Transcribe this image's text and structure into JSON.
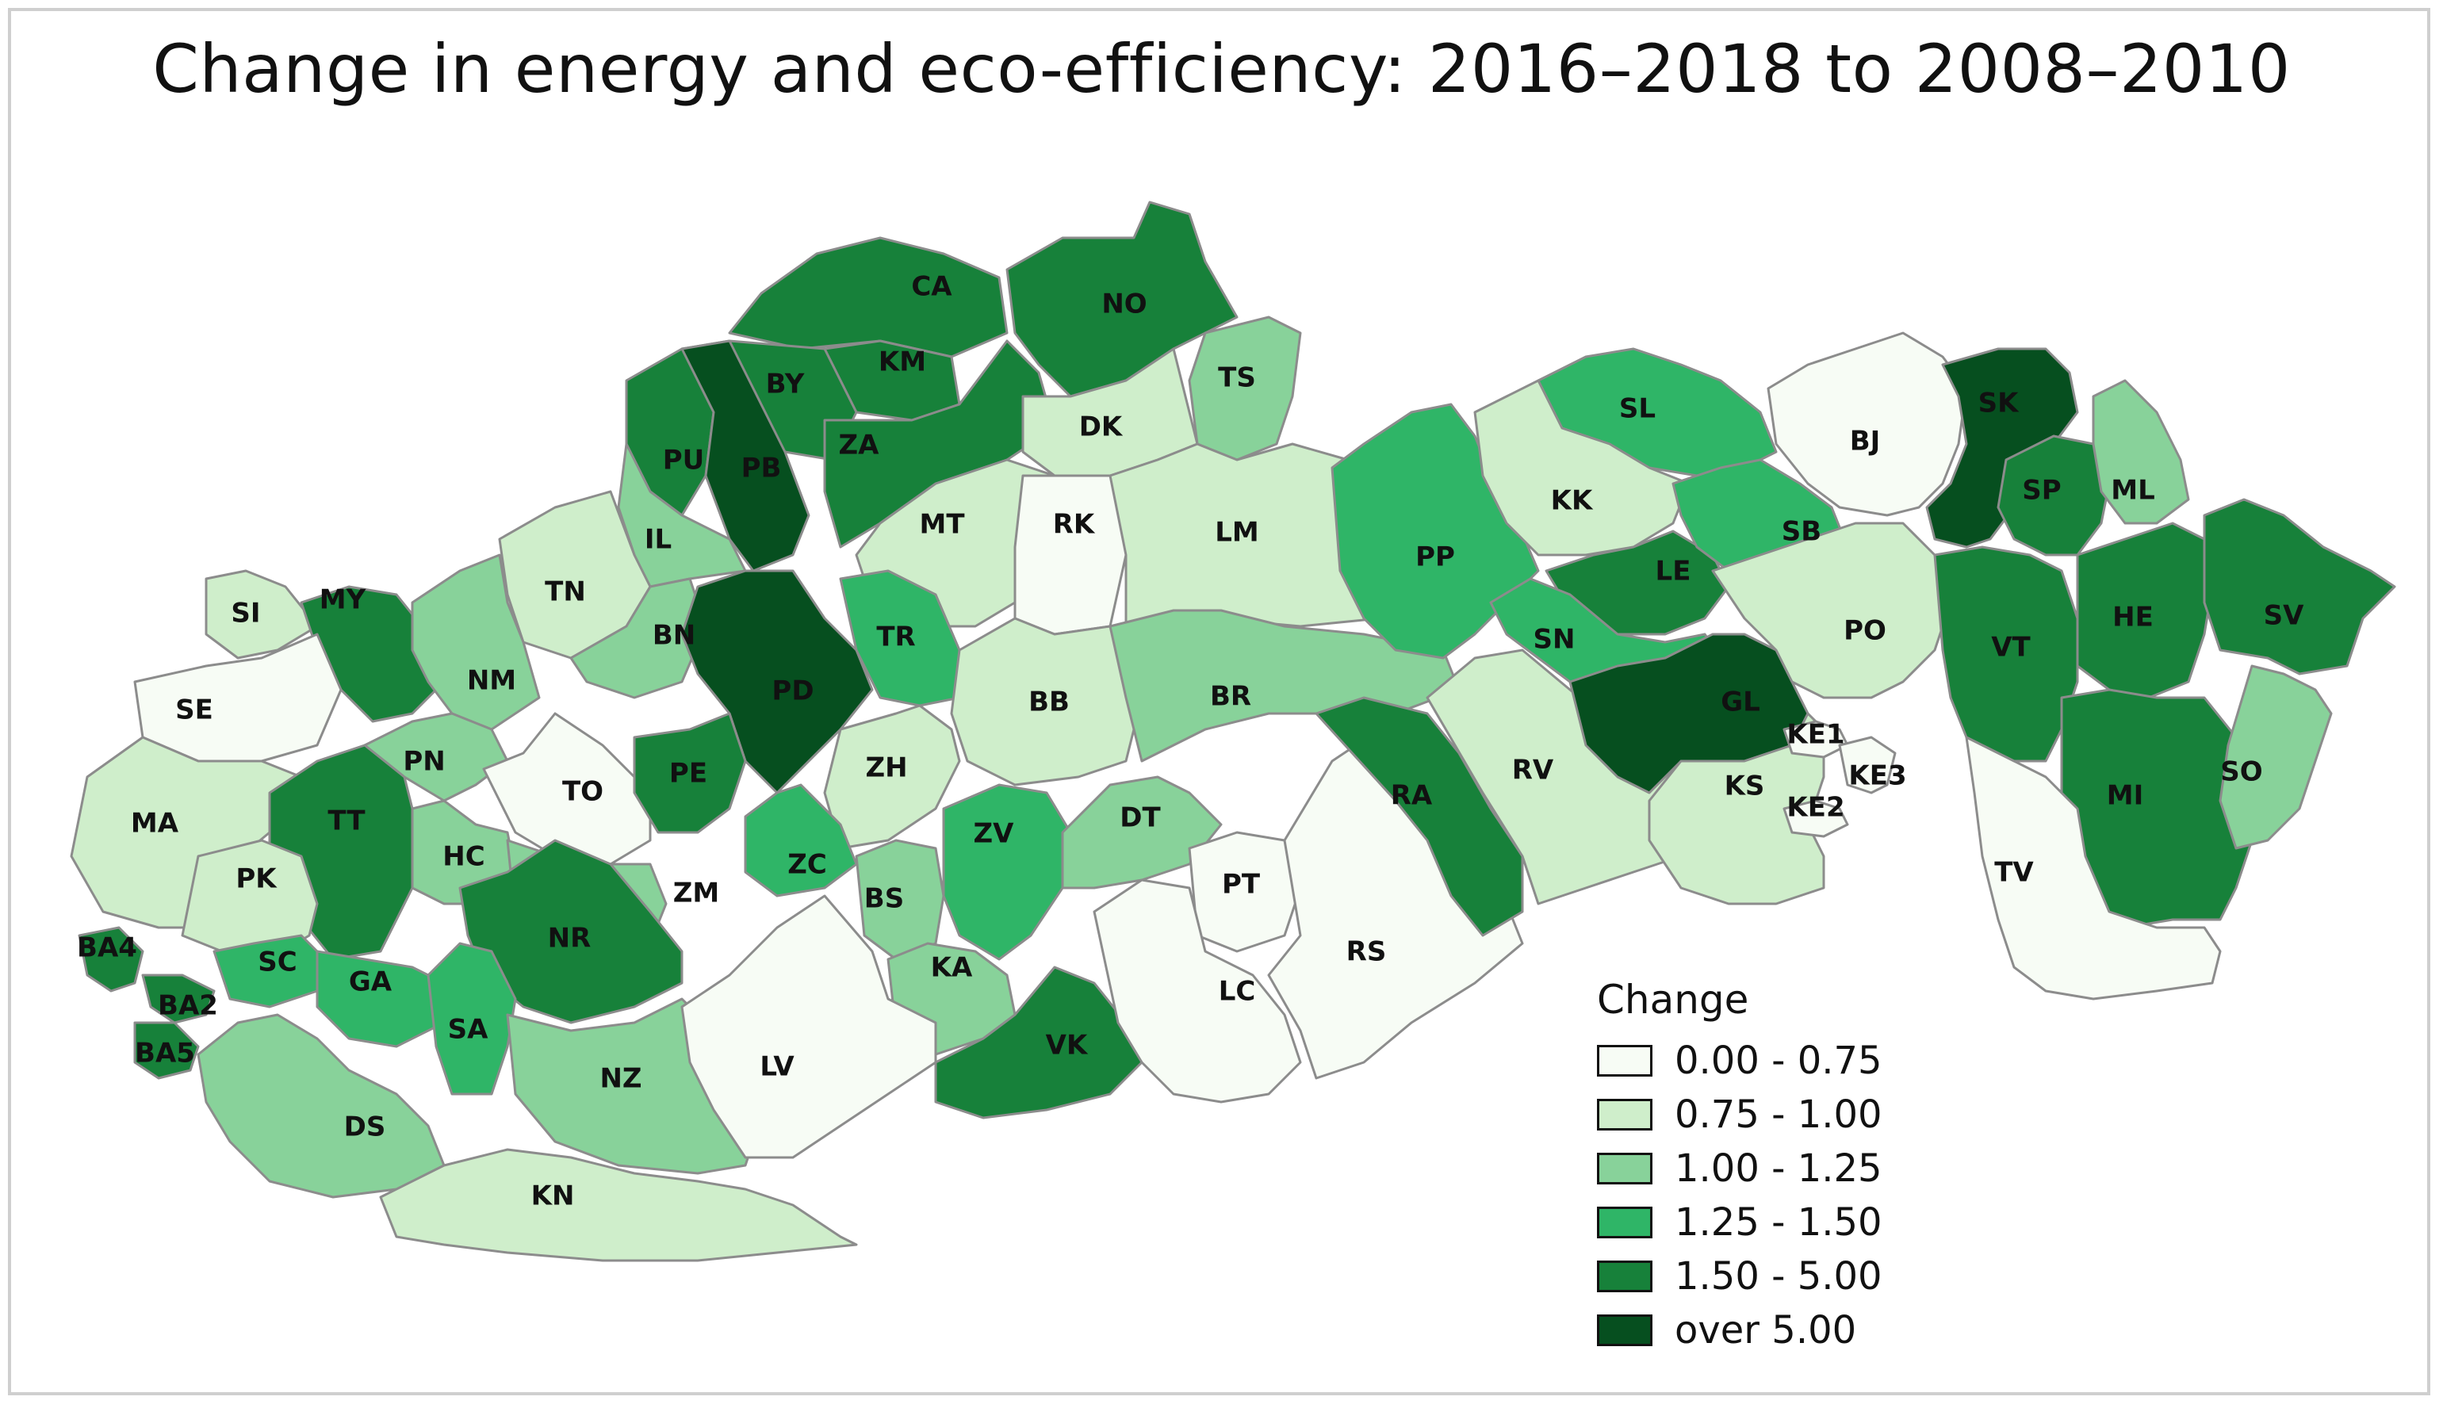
{
  "title": "Change in energy and eco-efficiency: 2016–2018 to 2008–2010",
  "colors": {
    "c0": "#f7fcf5",
    "c1": "#cfeecb",
    "c2": "#88d29a",
    "c3": "#2fb567",
    "c4": "#17813a",
    "c5": "#064f1f"
  },
  "legend": {
    "title": "Change",
    "items": [
      {
        "label": "0.00 - 0.75",
        "color": "#f7fcf5"
      },
      {
        "label": "0.75 - 1.00",
        "color": "#cfeecb"
      },
      {
        "label": "1.00 - 1.25",
        "color": "#88d29a"
      },
      {
        "label": "1.25 - 1.50",
        "color": "#2fb567"
      },
      {
        "label": "1.50 - 5.00",
        "color": "#17813a"
      },
      {
        "label": "over 5.00",
        "color": "#064f1f"
      }
    ]
  },
  "districts": [
    {
      "code": "CA",
      "cls": 4
    },
    {
      "code": "NO",
      "cls": 4
    },
    {
      "code": "TS",
      "cls": 2
    },
    {
      "code": "KM",
      "cls": 4
    },
    {
      "code": "BY",
      "cls": 4
    },
    {
      "code": "ZA",
      "cls": 4
    },
    {
      "code": "PU",
      "cls": 4
    },
    {
      "code": "PB",
      "cls": 5
    },
    {
      "code": "DK",
      "cls": 1
    },
    {
      "code": "MT",
      "cls": 1
    },
    {
      "code": "RK",
      "cls": 0
    },
    {
      "code": "LM",
      "cls": 1
    },
    {
      "code": "IL",
      "cls": 2
    },
    {
      "code": "TN",
      "cls": 1
    },
    {
      "code": "SI",
      "cls": 1
    },
    {
      "code": "MY",
      "cls": 4
    },
    {
      "code": "SE",
      "cls": 0
    },
    {
      "code": "NM",
      "cls": 2
    },
    {
      "code": "BN",
      "cls": 2
    },
    {
      "code": "PD",
      "cls": 5
    },
    {
      "code": "TR",
      "cls": 3
    },
    {
      "code": "BB",
      "cls": 1
    },
    {
      "code": "BR",
      "cls": 2
    },
    {
      "code": "MA",
      "cls": 1
    },
    {
      "code": "PN",
      "cls": 2
    },
    {
      "code": "TO",
      "cls": 0
    },
    {
      "code": "PE",
      "cls": 4
    },
    {
      "code": "ZH",
      "cls": 1
    },
    {
      "code": "TT",
      "cls": 4
    },
    {
      "code": "PK",
      "cls": 1
    },
    {
      "code": "HC",
      "cls": 2
    },
    {
      "code": "ZM",
      "cls": 2
    },
    {
      "code": "ZC",
      "cls": 3
    },
    {
      "code": "BS",
      "cls": 2
    },
    {
      "code": "ZV",
      "cls": 3
    },
    {
      "code": "DT",
      "cls": 2
    },
    {
      "code": "KA",
      "cls": 2
    },
    {
      "code": "VK",
      "cls": 4
    },
    {
      "code": "NR",
      "cls": 4
    },
    {
      "code": "SC",
      "cls": 3
    },
    {
      "code": "GA",
      "cls": 3
    },
    {
      "code": "SA",
      "cls": 3
    },
    {
      "code": "BA4",
      "cls": 4
    },
    {
      "code": "BA2",
      "cls": 4
    },
    {
      "code": "BA5",
      "cls": 4
    },
    {
      "code": "DS",
      "cls": 2
    },
    {
      "code": "NZ",
      "cls": 2
    },
    {
      "code": "KN",
      "cls": 1
    },
    {
      "code": "LV",
      "cls": 0
    },
    {
      "code": "PT",
      "cls": 0
    },
    {
      "code": "LC",
      "cls": 0
    },
    {
      "code": "RS",
      "cls": 0
    },
    {
      "code": "RA",
      "cls": 4
    },
    {
      "code": "RV",
      "cls": 1
    },
    {
      "code": "PP",
      "cls": 3
    },
    {
      "code": "SL",
      "cls": 3
    },
    {
      "code": "KK",
      "cls": 1
    },
    {
      "code": "LE",
      "cls": 4
    },
    {
      "code": "SB",
      "cls": 3
    },
    {
      "code": "SN",
      "cls": 3
    },
    {
      "code": "GL",
      "cls": 5
    },
    {
      "code": "BJ",
      "cls": 0
    },
    {
      "code": "PO",
      "cls": 1
    },
    {
      "code": "KS",
      "cls": 1
    },
    {
      "code": "KE1",
      "cls": 0
    },
    {
      "code": "KE2",
      "cls": 0
    },
    {
      "code": "KE3",
      "cls": 0
    },
    {
      "code": "SK",
      "cls": 5
    },
    {
      "code": "SP",
      "cls": 4
    },
    {
      "code": "ML",
      "cls": 2
    },
    {
      "code": "VT",
      "cls": 4
    },
    {
      "code": "HE",
      "cls": 4
    },
    {
      "code": "SV",
      "cls": 4
    },
    {
      "code": "MI",
      "cls": 4
    },
    {
      "code": "SO",
      "cls": 2
    },
    {
      "code": "TV",
      "cls": 0
    }
  ]
}
